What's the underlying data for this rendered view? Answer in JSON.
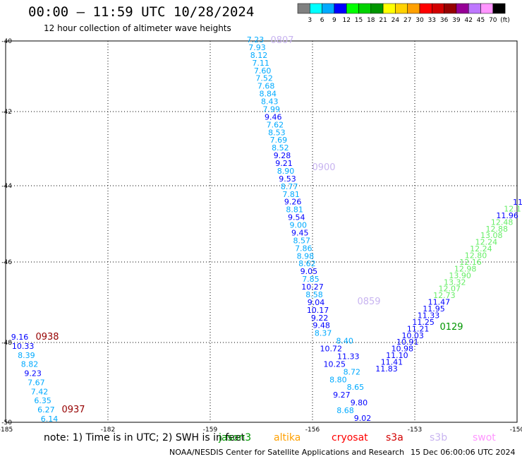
{
  "header": {
    "title": "00:00 – 11:59 UTC 10/28/2024",
    "subtitle": "12 hour collection of altimeter wave heights"
  },
  "colorbar": {
    "colors": [
      "#808080",
      "#00ffff",
      "#00aaff",
      "#0000ff",
      "#00ff00",
      "#00d200",
      "#009600",
      "#ffff00",
      "#ffd200",
      "#ffa000",
      "#ff0000",
      "#d20000",
      "#960000",
      "#960096",
      "#be78ff",
      "#ff96ff",
      "#000000"
    ],
    "ticks": [
      "3",
      "6",
      "9",
      "12",
      "15",
      "18",
      "21",
      "24",
      "27",
      "30",
      "33",
      "36",
      "39",
      "42",
      "45",
      "70"
    ],
    "unit": "(ft)"
  },
  "map": {
    "lon_ticks": [
      "-185",
      "-182",
      "-159",
      "-156",
      "-153",
      "-150"
    ],
    "lat_ticks": [
      "-40",
      "-42",
      "-44",
      "-46",
      "-48",
      "-50"
    ],
    "grid_lines": "dotted"
  },
  "passes": [
    {
      "label": "0807",
      "color": "#c8b4f0",
      "lon": -157.2,
      "lat": -40.0
    },
    {
      "label": "0900",
      "color": "#c8b4f0",
      "lon": -155.9,
      "lat": -43.5
    },
    {
      "label": "0859",
      "color": "#c8b4f0",
      "lon": -154.8,
      "lat": -47.4
    },
    {
      "label": "0938",
      "color": "#960000",
      "lon": -164.5,
      "lat": -47.9
    },
    {
      "label": "0937",
      "color": "#960000",
      "lon": -163.0,
      "lat": -49.8
    },
    {
      "label": "0129",
      "color": "#009600",
      "lon": -152.3,
      "lat": -47.6
    }
  ],
  "track_a": {
    "color_key": "s3b",
    "points": [
      {
        "v": "7.23",
        "c": "#00aaff"
      },
      {
        "v": "7.93",
        "c": "#00aaff"
      },
      {
        "v": "8.12",
        "c": "#00aaff"
      },
      {
        "v": "7.11",
        "c": "#00aaff"
      },
      {
        "v": "7.60",
        "c": "#00aaff"
      },
      {
        "v": "7.52",
        "c": "#00aaff"
      },
      {
        "v": "7.68",
        "c": "#00aaff"
      },
      {
        "v": "8.84",
        "c": "#00aaff"
      },
      {
        "v": "8.43",
        "c": "#00aaff"
      },
      {
        "v": "7.99",
        "c": "#00aaff"
      },
      {
        "v": "9.46",
        "c": "#0000ff"
      },
      {
        "v": "7.62",
        "c": "#00aaff"
      },
      {
        "v": "8.53",
        "c": "#00aaff"
      },
      {
        "v": "7.69",
        "c": "#00aaff"
      },
      {
        "v": "8.52",
        "c": "#00aaff"
      },
      {
        "v": "9.28",
        "c": "#0000ff"
      },
      {
        "v": "9.21",
        "c": "#0000ff"
      },
      {
        "v": "8.90",
        "c": "#00aaff"
      },
      {
        "v": "9.53",
        "c": "#0000ff"
      },
      {
        "v": "8.77",
        "c": "#00aaff"
      },
      {
        "v": "7.81",
        "c": "#00aaff"
      },
      {
        "v": "9.26",
        "c": "#0000ff"
      },
      {
        "v": "8.81",
        "c": "#00aaff"
      },
      {
        "v": "9.54",
        "c": "#0000ff"
      },
      {
        "v": "9.00",
        "c": "#00aaff"
      },
      {
        "v": "9.45",
        "c": "#0000ff"
      },
      {
        "v": "8.57",
        "c": "#00aaff"
      },
      {
        "v": "7.86",
        "c": "#00aaff"
      },
      {
        "v": "8.98",
        "c": "#00aaff"
      },
      {
        "v": "8.62",
        "c": "#00aaff"
      },
      {
        "v": "9.05",
        "c": "#0000ff"
      },
      {
        "v": "7.85",
        "c": "#00aaff"
      },
      {
        "v": "10.27",
        "c": "#0000ff"
      },
      {
        "v": "8.58",
        "c": "#00aaff"
      },
      {
        "v": "9.04",
        "c": "#0000ff"
      },
      {
        "v": "10.17",
        "c": "#0000ff"
      },
      {
        "v": "9.22",
        "c": "#0000ff"
      },
      {
        "v": "9.48",
        "c": "#0000ff"
      },
      {
        "v": "8.37",
        "c": "#00aaff"
      },
      {
        "v": "8.40",
        "c": "#00aaff"
      },
      {
        "v": "10.72",
        "c": "#0000ff"
      },
      {
        "v": "11.33",
        "c": "#0000ff"
      },
      {
        "v": "10.25",
        "c": "#0000ff"
      },
      {
        "v": "8.72",
        "c": "#00aaff"
      },
      {
        "v": "8.80",
        "c": "#00aaff"
      },
      {
        "v": "8.65",
        "c": "#00aaff"
      },
      {
        "v": "9.27",
        "c": "#0000ff"
      },
      {
        "v": "9.80",
        "c": "#0000ff"
      },
      {
        "v": "8.68",
        "c": "#00aaff"
      },
      {
        "v": "9.02",
        "c": "#0000ff"
      }
    ]
  },
  "track_b": {
    "points": [
      {
        "v": "11.83",
        "c": "#0000ff"
      },
      {
        "v": "11.41",
        "c": "#0000ff"
      },
      {
        "v": "11.10",
        "c": "#0000ff"
      },
      {
        "v": "10.98",
        "c": "#0000ff"
      },
      {
        "v": "10.91",
        "c": "#0000ff"
      },
      {
        "v": "10.03",
        "c": "#0000ff"
      },
      {
        "v": "11.21",
        "c": "#0000ff"
      },
      {
        "v": "11.25",
        "c": "#0000ff"
      },
      {
        "v": "11.33",
        "c": "#0000ff"
      },
      {
        "v": "11.95",
        "c": "#0000ff"
      },
      {
        "v": "11.47",
        "c": "#0000ff"
      },
      {
        "v": "12.73",
        "c": "#66ee66"
      },
      {
        "v": "12.07",
        "c": "#66ee66"
      },
      {
        "v": "13.32",
        "c": "#66ee66"
      },
      {
        "v": "13.90",
        "c": "#66ee66"
      },
      {
        "v": "12.98",
        "c": "#66ee66"
      },
      {
        "v": "12.16",
        "c": "#66ee66"
      },
      {
        "v": "12.80",
        "c": "#66ee66"
      },
      {
        "v": "12.24",
        "c": "#66ee66"
      },
      {
        "v": "12.24",
        "c": "#66ee66"
      },
      {
        "v": "13.08",
        "c": "#66ee66"
      },
      {
        "v": "12.88",
        "c": "#66ee66"
      },
      {
        "v": "12.48",
        "c": "#66ee66"
      },
      {
        "v": "11.96",
        "c": "#0000ff"
      },
      {
        "v": "12.1",
        "c": "#66ee66"
      },
      {
        "v": "11",
        "c": "#0000ff"
      }
    ]
  },
  "track_c": {
    "points": [
      {
        "v": "9.16",
        "c": "#0000ff"
      },
      {
        "v": "10.33",
        "c": "#0000ff"
      },
      {
        "v": "8.39",
        "c": "#00aaff"
      },
      {
        "v": "8.82",
        "c": "#00aaff"
      },
      {
        "v": "9.23",
        "c": "#0000ff"
      },
      {
        "v": "7.67",
        "c": "#00aaff"
      },
      {
        "v": "7.42",
        "c": "#00aaff"
      },
      {
        "v": "6.35",
        "c": "#00aaff"
      },
      {
        "v": "6.27",
        "c": "#00aaff"
      },
      {
        "v": "6.14",
        "c": "#00aaff"
      }
    ]
  },
  "footer": {
    "note": "note:  1) Time is in UTC; 2) SWH is in feet",
    "legend": [
      {
        "name": "jason3",
        "color": "#009600"
      },
      {
        "name": "altika",
        "color": "#ffa000"
      },
      {
        "name": "cryosat",
        "color": "#ff0000"
      },
      {
        "name": "s3a",
        "color": "#d20000"
      },
      {
        "name": "s3b",
        "color": "#c8b4f0"
      },
      {
        "name": "swot",
        "color": "#ff96ff"
      }
    ],
    "credit": "NOAA/NESDIS Center for Satellite Applications and Research",
    "generated": "15 Dec 06:00:06 UTC 2024"
  }
}
